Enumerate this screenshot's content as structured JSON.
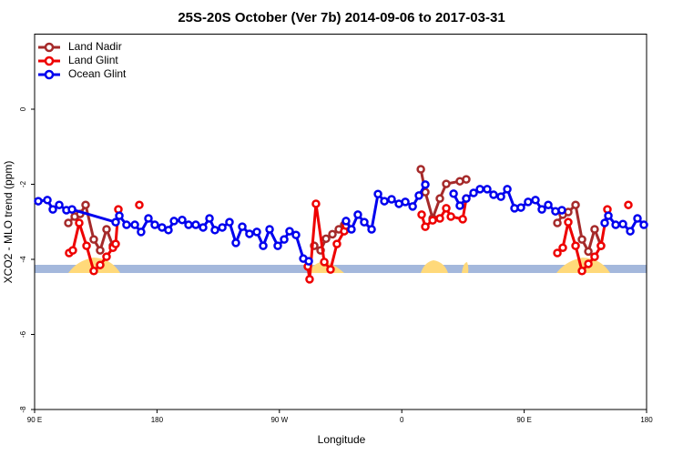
{
  "chart_data": {
    "type": "line",
    "title": "25S-20S October (Ver 7b)   2014-09-06 to 2017-03-31",
    "x_label": "Longitude",
    "y_label": "XCO2 - MLO trend (ppm)",
    "xlim": [
      90,
      540
    ],
    "ylim": [
      -8,
      2
    ],
    "xticks": [
      {
        "value": 90,
        "label": "90 E"
      },
      180,
      {
        "value": 270,
        "label": "90 W"
      },
      {
        "value": 360,
        "label": "0"
      },
      {
        "value": 450,
        "label": "90 E"
      },
      {
        "value": 540,
        "label": "180"
      }
    ],
    "yticks": [
      -8,
      -6,
      -4,
      -2,
      0
    ],
    "legend": "top-left",
    "series": [
      {
        "name": "Land Nadir",
        "color": "#a52a2a",
        "x": [
          114.8,
          119.5,
          123.5,
          127.5,
          133.5,
          138.2,
          142.9,
          147.6,
          null,
          295.6,
          300.3,
          304.3,
          309.0,
          313.7,
          317.7,
          null,
          374.0,
          377.3,
          382.7,
          388.0,
          392.7,
          402.7,
          407.4,
          null,
          474.4,
          478.4,
          482.4,
          487.8,
          492.5,
          497.2,
          501.8,
          506.5
        ],
        "values": [
          -3.03,
          -2.86,
          -2.79,
          -2.55,
          -3.47,
          -3.76,
          -3.2,
          -3.64,
          null,
          -3.64,
          -3.76,
          -3.45,
          -3.33,
          -3.2,
          -3.08,
          null,
          -1.6,
          -2.21,
          -2.91,
          -2.38,
          -1.99,
          -1.92,
          -1.87,
          null,
          -3.03,
          -2.81,
          -2.74,
          -2.55,
          -3.47,
          -3.79,
          -3.2,
          -3.64
        ]
      },
      {
        "name": "Land Glint",
        "color": "#ee0000",
        "x": [
          115.4,
          118.1,
          122.8,
          128.2,
          133.5,
          138.2,
          142.9,
          147.6,
          149.6,
          151.6,
          null,
          167.0,
          null,
          290.9,
          292.2,
          296.9,
          303.0,
          307.6,
          312.3,
          317.7,
          319.0,
          null,
          374.6,
          377.3,
          382.7,
          388.0,
          392.7,
          396.1,
          404.8,
          407.4,
          null,
          474.4,
          478.4,
          482.4,
          487.8,
          492.5,
          497.2,
          501.8,
          506.5,
          511.2,
          null,
          526.6
        ],
        "values": [
          -3.83,
          -3.76,
          -3.03,
          -3.64,
          -4.31,
          -4.15,
          -3.93,
          -3.69,
          -3.59,
          -2.67,
          null,
          -2.55,
          null,
          -4.19,
          -4.53,
          -2.52,
          -4.07,
          -4.27,
          -3.59,
          -3.25,
          -3.1,
          null,
          -2.81,
          -3.13,
          -2.96,
          -2.91,
          -2.64,
          -2.86,
          -2.93,
          -2.38,
          null,
          -3.83,
          -3.69,
          -3.01,
          -3.64,
          -4.31,
          -4.12,
          -3.93,
          -3.64,
          -2.67,
          null,
          -2.55
        ]
      },
      {
        "name": "Ocean Glint",
        "color": "#0000ee",
        "x": [
          92.7,
          99.4,
          103.4,
          108.1,
          113.4,
          117.5,
          149.6,
          152.3,
          157.6,
          163.7,
          168.3,
          173.7,
          178.4,
          183.7,
          188.4,
          192.5,
          198.5,
          203.2,
          208.5,
          213.9,
          218.6,
          222.6,
          228.0,
          233.3,
          238.0,
          242.7,
          248.0,
          253.4,
          258.1,
          262.8,
          268.8,
          273.5,
          277.5,
          282.2,
          287.6,
          291.6,
          null,
          319.0,
          323.0,
          327.7,
          332.4,
          337.8,
          342.5,
          347.2,
          352.5,
          357.9,
          362.6,
          368.0,
          372.6,
          377.3,
          null,
          398.1,
          402.7,
          407.4,
          412.8,
          417.5,
          422.8,
          427.5,
          432.9,
          437.6,
          442.9,
          447.6,
          452.9,
          458.3,
          463.0,
          467.7,
          473.0,
          477.7,
          null,
          509.2,
          511.9,
          517.3,
          522.6,
          528.0,
          533.3,
          538.0
        ],
        "values": [
          -2.45,
          -2.42,
          -2.67,
          -2.55,
          -2.69,
          -2.67,
          -3.01,
          -2.84,
          -3.08,
          -3.08,
          -3.27,
          -2.91,
          -3.08,
          -3.15,
          -3.22,
          -2.98,
          -2.95,
          -3.08,
          -3.08,
          -3.15,
          -2.91,
          -3.22,
          -3.15,
          -3.01,
          -3.56,
          -3.13,
          -3.32,
          -3.27,
          -3.64,
          -3.2,
          -3.64,
          -3.47,
          -3.25,
          -3.35,
          -3.98,
          -4.05,
          null,
          -2.98,
          -3.2,
          -2.81,
          -3.01,
          -3.2,
          -2.26,
          -2.45,
          -2.4,
          -2.52,
          -2.47,
          -2.59,
          -2.3,
          -2.01,
          null,
          -2.25,
          -2.57,
          -2.38,
          -2.23,
          -2.13,
          -2.13,
          -2.28,
          -2.33,
          -2.13,
          -2.64,
          -2.62,
          -2.47,
          -2.42,
          -2.67,
          -2.55,
          -2.72,
          -2.69,
          null,
          -3.03,
          -2.84,
          -3.08,
          -3.06,
          -3.25,
          -2.91,
          -3.08
        ]
      }
    ]
  }
}
